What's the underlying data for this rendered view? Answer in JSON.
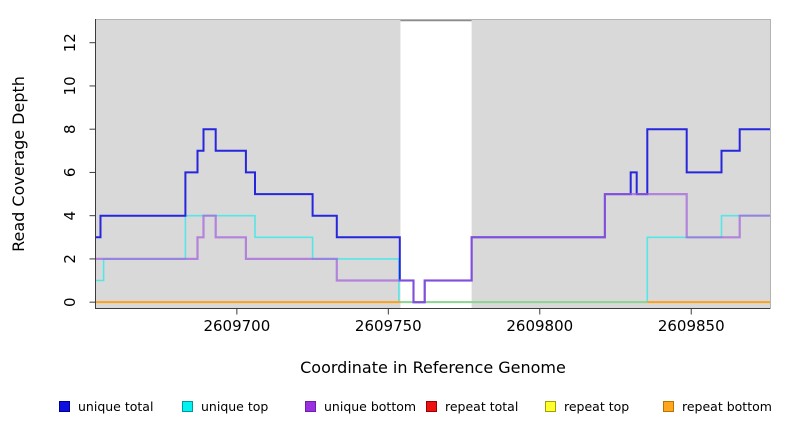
{
  "chart_data": {
    "type": "line",
    "title": "",
    "xlabel": "Coordinate in Reference Genome",
    "ylabel": "Read Coverage Depth",
    "xlim": [
      2609653.5,
      2609876
    ],
    "ylim": [
      -0.27,
      13.05
    ],
    "x_ticks": [
      2609700,
      2609750,
      2609800,
      2609850
    ],
    "y_ticks": [
      0,
      2,
      4,
      6,
      8,
      10,
      12
    ],
    "plot_background": "#d9d9d9",
    "grid": "off",
    "legend_position": "bottom",
    "gap_band": {
      "x0": 2609754,
      "x1": 2609777.5,
      "color": "#ffffff",
      "border": "#8c8c8c"
    },
    "series": [
      {
        "name": "unique total",
        "color": "#2626dd",
        "width": 2,
        "opacity": 1,
        "points": [
          [
            2609653.5,
            3
          ],
          [
            2609655,
            4
          ],
          [
            2609683,
            6
          ],
          [
            2609687,
            7
          ],
          [
            2609689,
            8
          ],
          [
            2609693,
            7
          ],
          [
            2609703,
            6
          ],
          [
            2609706,
            5
          ],
          [
            2609725,
            4
          ],
          [
            2609733,
            3
          ],
          [
            2609753.8,
            1
          ],
          [
            2609758.3,
            0
          ],
          [
            2609762,
            1
          ],
          [
            2609777.5,
            3
          ],
          [
            2609821.5,
            5
          ],
          [
            2609830,
            6
          ],
          [
            2609832,
            5
          ],
          [
            2609835.5,
            8
          ],
          [
            2609848.5,
            6
          ],
          [
            2609860,
            7
          ],
          [
            2609866,
            8
          ],
          [
            2609876,
            8
          ]
        ]
      },
      {
        "name": "unique top",
        "color": "#55e6e8",
        "width": 1.6,
        "opacity": 1,
        "points": [
          [
            2609653.5,
            1
          ],
          [
            2609656,
            2
          ],
          [
            2609683,
            4
          ],
          [
            2609706,
            3
          ],
          [
            2609725,
            2
          ],
          [
            2609753.5,
            0
          ],
          [
            2609835.5,
            3
          ],
          [
            2609860,
            4
          ],
          [
            2609876,
            4
          ]
        ]
      },
      {
        "name": "unique bottom",
        "color": "#a361dd",
        "width": 2.2,
        "opacity": 0.72,
        "points": [
          [
            2609653.5,
            2
          ],
          [
            2609687,
            3
          ],
          [
            2609689,
            4
          ],
          [
            2609693,
            3
          ],
          [
            2609703,
            2
          ],
          [
            2609733,
            1
          ],
          [
            2609758.3,
            0
          ],
          [
            2609762,
            1
          ],
          [
            2609777.5,
            3
          ],
          [
            2609821.5,
            5
          ],
          [
            2609848.5,
            3
          ],
          [
            2609866,
            4
          ],
          [
            2609876,
            4
          ]
        ]
      },
      {
        "name": "repeat total",
        "color": "#dd2222",
        "width": 1.4,
        "opacity": 1,
        "points": [
          [
            2609653.5,
            0
          ],
          [
            2609876,
            0
          ]
        ]
      },
      {
        "name": "repeat top",
        "color": "#eded2a",
        "width": 1.4,
        "opacity": 1,
        "points": [
          [
            2609653.5,
            0
          ],
          [
            2609876,
            0
          ]
        ]
      },
      {
        "name": "repeat bottom",
        "color": "#ffa019",
        "width": 2,
        "opacity": 1,
        "points": [
          [
            2609653.5,
            0
          ],
          [
            2609876,
            0
          ]
        ]
      }
    ],
    "zero_line_segments": [
      {
        "x0": 2609653.5,
        "x1": 2609754,
        "color": "#ffa019"
      },
      {
        "x0": 2609754,
        "x1": 2609835.5,
        "color": "#8fd48f"
      },
      {
        "x0": 2609835.5,
        "x1": 2609876,
        "color": "#ffa019"
      }
    ],
    "axis_color": "#3b3b3b",
    "box_color": "#b3b3b3"
  },
  "legend": {
    "items": [
      {
        "label": "unique total",
        "color": "#0f0fe0",
        "border": "#000090"
      },
      {
        "label": "unique top",
        "color": "#00f2f2",
        "border": "#009898"
      },
      {
        "label": "unique bottom",
        "color": "#9a30e0",
        "border": "#6a1fae"
      },
      {
        "label": "repeat total",
        "color": "#ee1111",
        "border": "#990000"
      },
      {
        "label": "repeat top",
        "color": "#ffff2e",
        "border": "#a0a000"
      },
      {
        "label": "repeat bottom",
        "color": "#ffa51e",
        "border": "#b87400"
      }
    ]
  }
}
